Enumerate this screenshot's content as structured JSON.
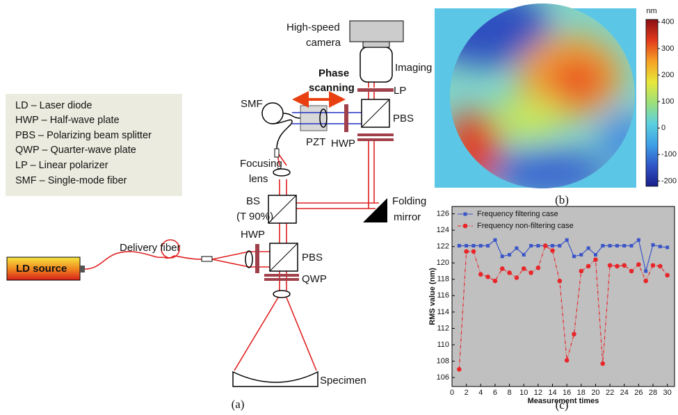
{
  "diagram": {
    "legend": [
      "LD – Laser diode",
      "HWP – Half-wave plate",
      "PBS – Polarizing beam splitter",
      "QWP – Quarter-wave plate",
      "LP – Linear polarizer",
      "SMF – Single-mode fiber"
    ],
    "labels": [
      "High-speed",
      "camera",
      "Imaging lens",
      "Phase",
      "scanning",
      "SMF",
      "LP",
      "PBS",
      "PZT",
      "HWP",
      "Focusing",
      "lens",
      "BS",
      "(T 90%)",
      "Folding",
      "mirror",
      "HWP",
      "Delivery fiber",
      "PBS",
      "QWP",
      "LD source",
      "Specimen"
    ],
    "caption": "(a)"
  },
  "colormap": {
    "unit": "nm",
    "lim": [
      -220,
      410
    ],
    "ticks": [
      -200,
      -100,
      0,
      100,
      200,
      300,
      400
    ],
    "colors": [
      "#1a1f8a",
      "#2f56c8",
      "#3ea0e6",
      "#5cd0e0",
      "#9be07a",
      "#e8e83a",
      "#f5a024",
      "#e23a1c",
      "#8a0f14"
    ],
    "caption": "(b)"
  },
  "chart_data": {
    "type": "line",
    "x": [
      1,
      2,
      3,
      4,
      5,
      6,
      7,
      8,
      9,
      10,
      11,
      12,
      13,
      14,
      15,
      16,
      17,
      18,
      19,
      20,
      21,
      22,
      23,
      24,
      25,
      26,
      27,
      28,
      29,
      30
    ],
    "series": [
      {
        "name": "Frequency filtering case",
        "color": "#3a55c8",
        "values": [
          122.1,
          122.1,
          122.1,
          122.1,
          122.1,
          122.8,
          120.8,
          121.0,
          121.8,
          121.0,
          122.1,
          122.1,
          122.1,
          122.1,
          122.1,
          122.8,
          120.8,
          121.0,
          121.8,
          121.0,
          122.1,
          122.1,
          122.1,
          122.1,
          122.1,
          122.8,
          119.0,
          122.2,
          122.0,
          121.9
        ]
      },
      {
        "name": "Frequency non-filtering case",
        "color": "#e8262a",
        "values": [
          107.0,
          121.4,
          121.4,
          118.6,
          118.3,
          117.8,
          119.3,
          118.8,
          118.2,
          119.3,
          118.8,
          119.4,
          122.1,
          121.5,
          117.8,
          108.1,
          111.3,
          119.0,
          119.6,
          120.4,
          107.7,
          119.7,
          119.6,
          119.7,
          119.0,
          119.8,
          117.8,
          119.7,
          119.6,
          118.5
        ]
      }
    ],
    "xlabel": "Measurement times",
    "ylabel": "RMS value (nm)",
    "xlim": [
      0,
      31
    ],
    "ylim": [
      104.9,
      126.9
    ],
    "xticks": [
      0,
      2,
      4,
      6,
      8,
      10,
      12,
      14,
      16,
      18,
      20,
      22,
      24,
      26,
      28,
      30
    ],
    "yticks": [
      106,
      108,
      110,
      112,
      114,
      116,
      118,
      120,
      122,
      124,
      126
    ],
    "background": "#c0c0c0",
    "caption": "(c)"
  }
}
